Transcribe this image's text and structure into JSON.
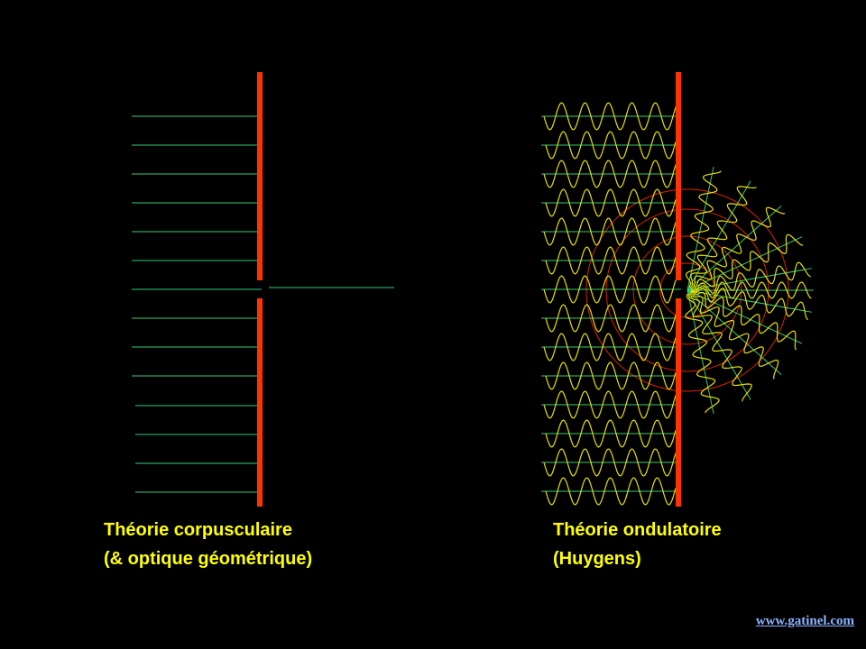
{
  "left_panel": {
    "caption_line1": "Théorie corpusculaire",
    "caption_line2": "(& optique géométrique)"
  },
  "right_panel": {
    "caption_line1": "Théorie ondulatoire",
    "caption_line2": "(Huygens)"
  },
  "footer": {
    "site_link": "www.gatinel.com"
  },
  "colors": {
    "background": "#000000",
    "barrier": "#ff3300",
    "ray": "#33cc77",
    "wave": "#e8e000",
    "wavefront": "#dd2200",
    "caption": "#ffff00",
    "link": "#8ab4ff"
  }
}
